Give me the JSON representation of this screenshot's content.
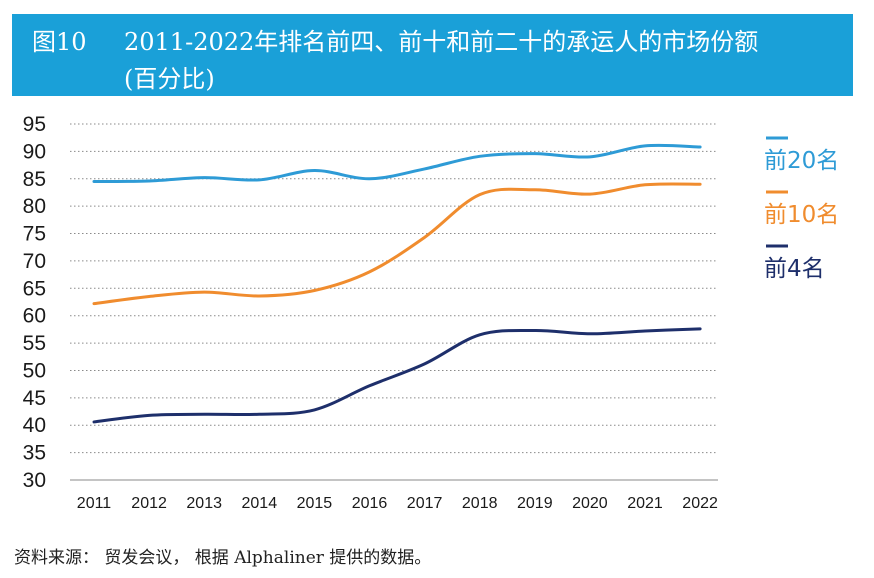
{
  "header": {
    "figure_number": "图10",
    "title": "2011-2022年排名前四、前十和前二十的承运人的市场份额",
    "subtitle": "(百分比)"
  },
  "chart_data": {
    "type": "line",
    "title": "2011-2022年排名前四、前十和前二十的承运人的市场份额",
    "subtitle": "(百分比)",
    "x": [
      "2011",
      "2012",
      "2013",
      "2014",
      "2015",
      "2016",
      "2017",
      "2018",
      "2019",
      "2020",
      "2021",
      "2022"
    ],
    "yticks": [
      95,
      90,
      85,
      80,
      75,
      70,
      65,
      60,
      55,
      50,
      45,
      40,
      35,
      30
    ],
    "ylim": [
      30,
      95
    ],
    "grid": "horizontal-dotted",
    "legend_position": "right",
    "series": [
      {
        "name": "前20名",
        "color": "#2e9bd6",
        "values": [
          84.5,
          84.6,
          85.2,
          84.8,
          86.5,
          85.0,
          86.8,
          89.1,
          89.6,
          89.0,
          91.0,
          90.8
        ]
      },
      {
        "name": "前10名",
        "color": "#f08c2e",
        "values": [
          62.2,
          63.5,
          64.3,
          63.6,
          64.6,
          68.0,
          74.3,
          82.1,
          83.0,
          82.2,
          83.9,
          84.0
        ]
      },
      {
        "name": "前4名",
        "color": "#1e2f6b",
        "values": [
          40.6,
          41.8,
          42.0,
          42.0,
          42.8,
          47.2,
          51.2,
          56.5,
          57.3,
          56.7,
          57.2,
          57.6
        ]
      }
    ]
  },
  "source": "资料来源： 贸发会议， 根据 Alphaliner 提供的数据。"
}
